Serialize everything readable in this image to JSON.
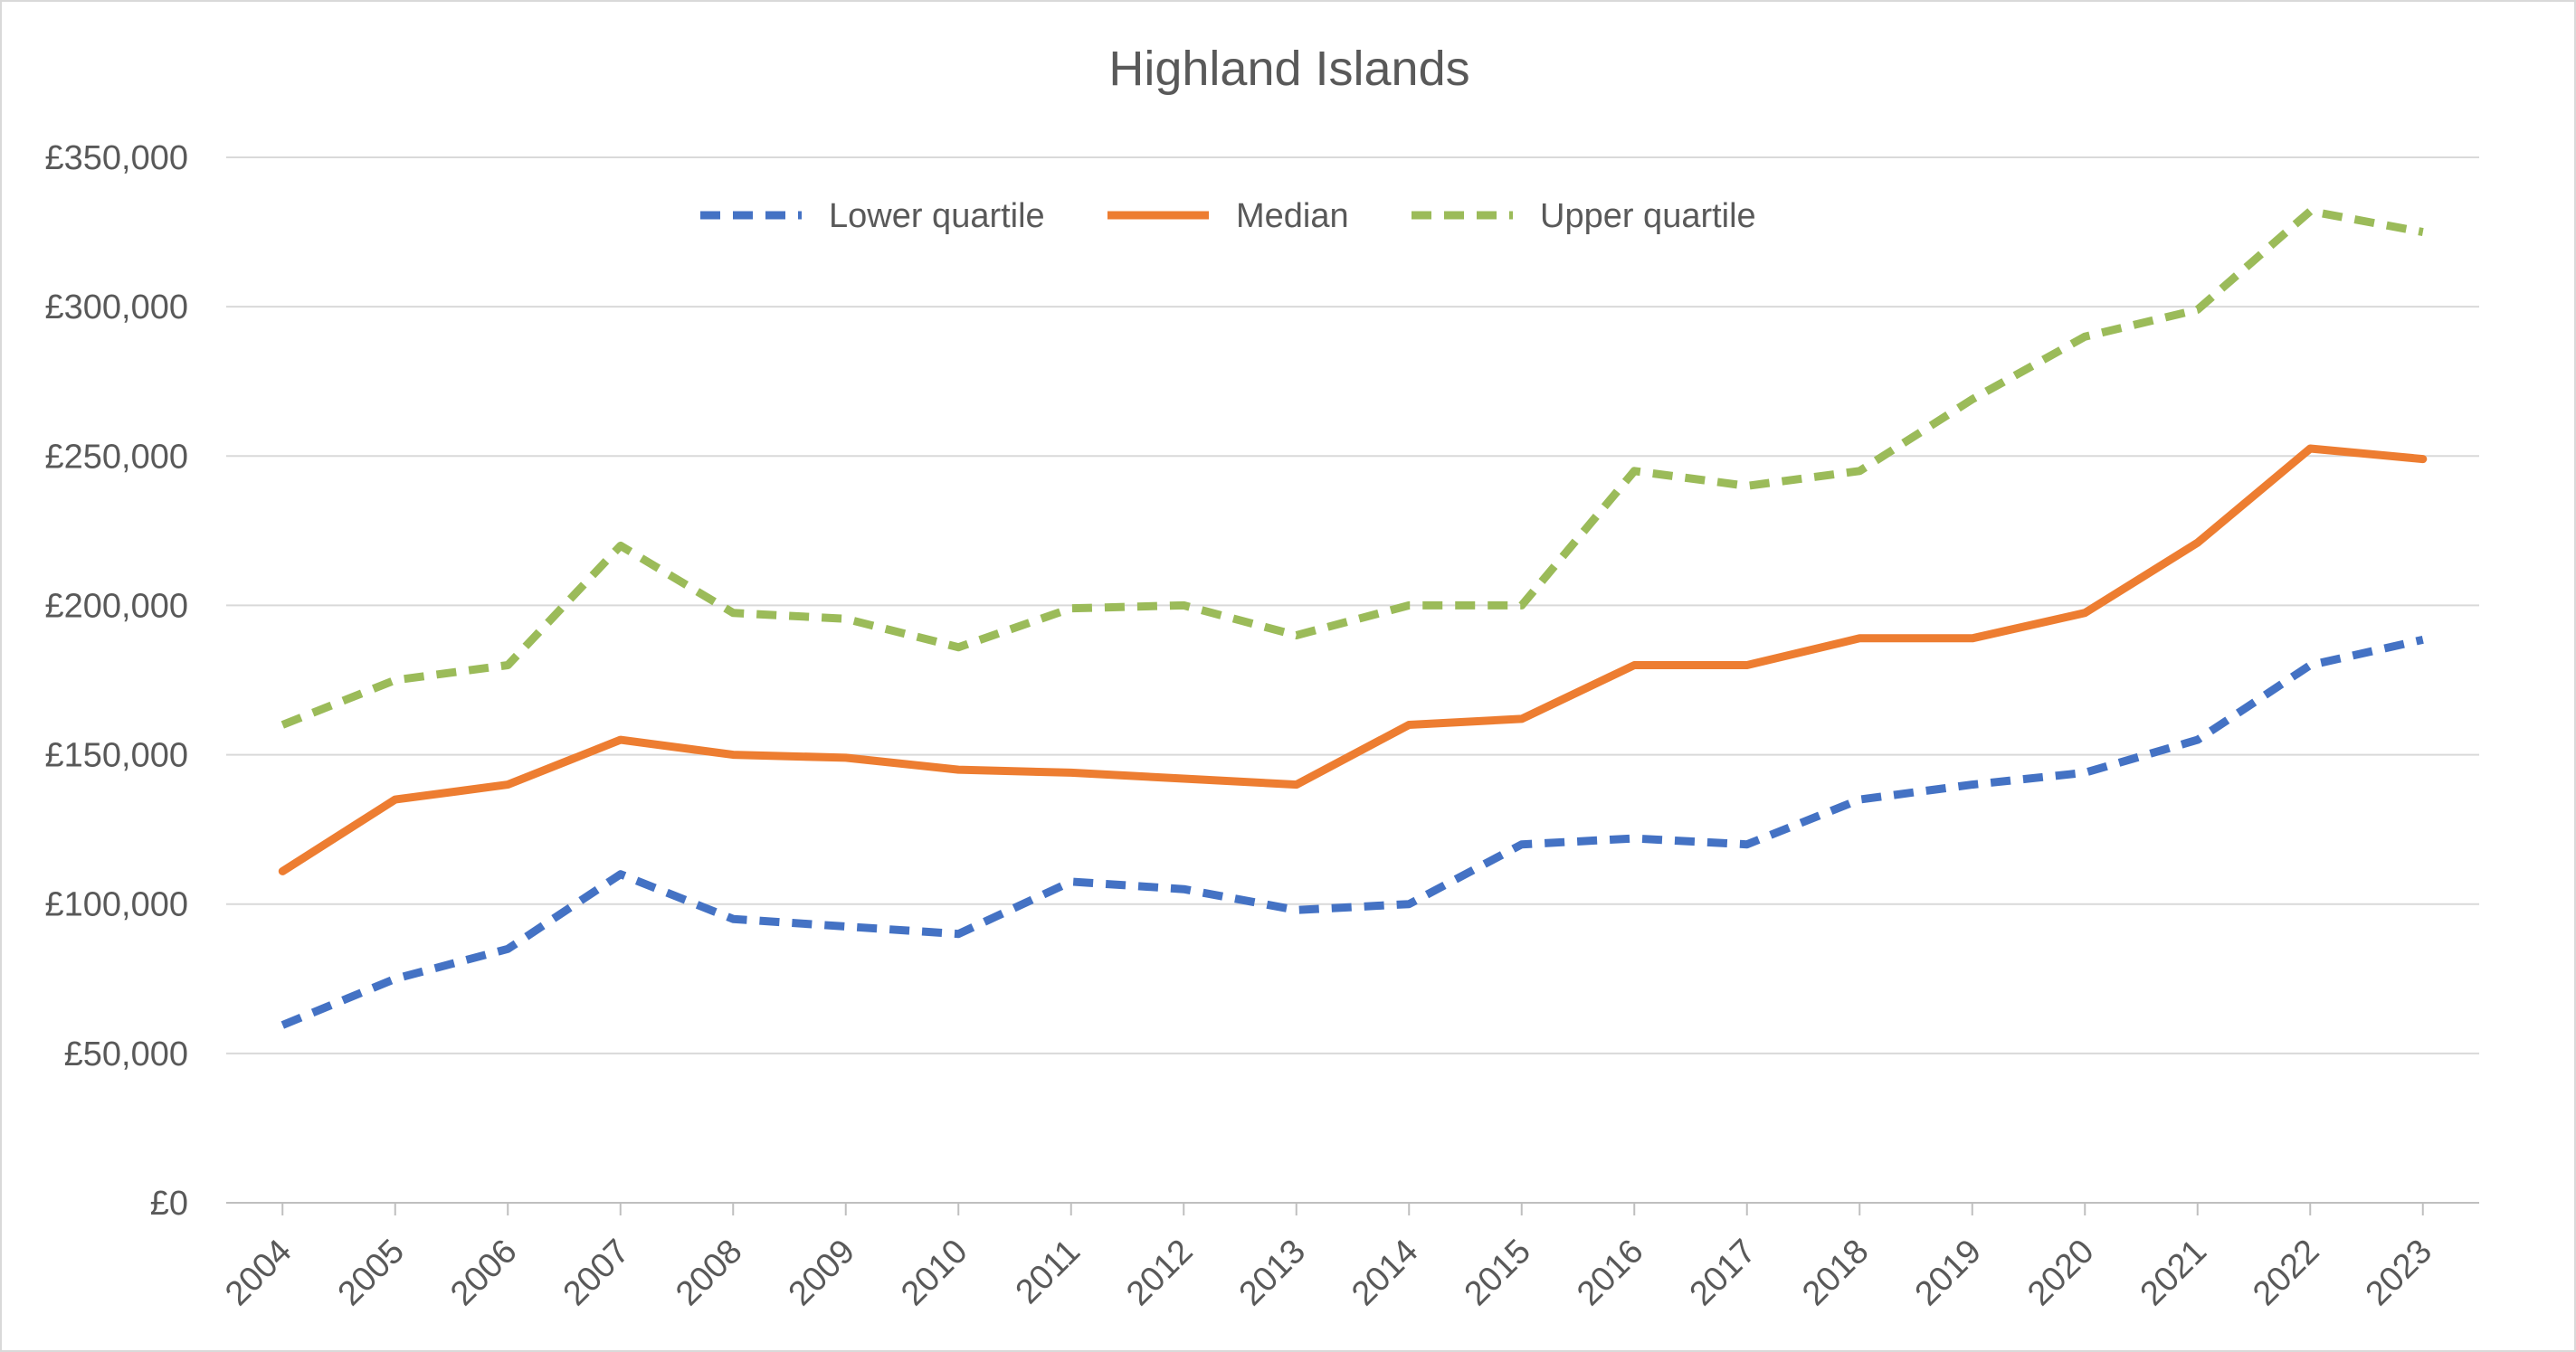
{
  "chart_data": {
    "type": "line",
    "title": "Highland Islands",
    "xlabel": "",
    "ylabel": "",
    "ylim": [
      0,
      350000
    ],
    "y_ticks": [
      "£0",
      "£50,000",
      "£100,000",
      "£150,000",
      "£200,000",
      "£250,000",
      "£300,000",
      "£350,000"
    ],
    "y_tick_values": [
      0,
      50000,
      100000,
      150000,
      200000,
      250000,
      300000,
      350000
    ],
    "grid": true,
    "legend_position": "top",
    "categories": [
      "2004",
      "2005",
      "2006",
      "2007",
      "2008",
      "2009",
      "2010",
      "2011",
      "2012",
      "2013",
      "2014",
      "2015",
      "2016",
      "2017",
      "2018",
      "2019",
      "2020",
      "2021",
      "2022",
      "2023"
    ],
    "series": [
      {
        "name": "Lower quartile",
        "color": "#4472c4",
        "dash": true,
        "values": [
          59500,
          75000,
          85000,
          110000,
          95000,
          92500,
          90000,
          107500,
          105000,
          98000,
          100000,
          120000,
          122000,
          120000,
          135000,
          140000,
          144000,
          155000,
          180000,
          188500
        ]
      },
      {
        "name": "Median",
        "color": "#ed7d31",
        "dash": false,
        "values": [
          111000,
          135000,
          140000,
          155000,
          150000,
          149000,
          145000,
          144000,
          142000,
          140000,
          160000,
          162000,
          180000,
          180000,
          189000,
          189000,
          197500,
          221000,
          252500,
          249000
        ]
      },
      {
        "name": "Upper quartile",
        "color": "#9bbb59",
        "dash": true,
        "values": [
          160000,
          175000,
          180000,
          220000,
          197500,
          195500,
          186000,
          199000,
          200000,
          190000,
          200000,
          200000,
          245000,
          240000,
          245000,
          269000,
          290000,
          299000,
          332000,
          325000
        ]
      }
    ]
  }
}
